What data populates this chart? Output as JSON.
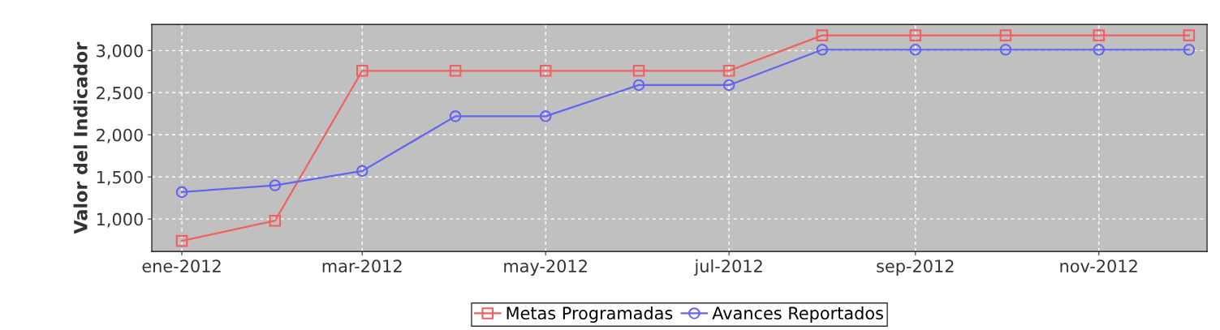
{
  "chart_data": {
    "type": "line",
    "ylabel": "Valor del Indicador",
    "x": [
      "2012-01",
      "2012-02",
      "2012-03",
      "2012-04",
      "2012-05",
      "2012-06",
      "2012-07",
      "2012-08",
      "2012-09",
      "2012-10",
      "2012-11",
      "2012-12"
    ],
    "series": [
      {
        "name": "Metas Programadas",
        "color": "#f06060",
        "marker": "square",
        "values": [
          740,
          980,
          2760,
          2760,
          2760,
          2760,
          2760,
          3180,
          3180,
          3180,
          3180,
          3180
        ]
      },
      {
        "name": "Avances Reportados",
        "color": "#6464f0",
        "marker": "circle",
        "values": [
          1320,
          1400,
          1570,
          2220,
          2220,
          2590,
          2590,
          3010,
          3010,
          3010,
          3010,
          3010
        ]
      }
    ],
    "xlim": [
      "2011-12-22",
      "2012-12-07"
    ],
    "xticks": [
      {
        "value": "2012-01",
        "label": "ene-2012"
      },
      {
        "value": "2012-03",
        "label": "mar-2012"
      },
      {
        "value": "2012-05",
        "label": "may-2012"
      },
      {
        "value": "2012-07",
        "label": "jul-2012"
      },
      {
        "value": "2012-09",
        "label": "sep-2012"
      },
      {
        "value": "2012-11",
        "label": "nov-2012"
      }
    ],
    "ylim": [
      615,
      3310
    ],
    "yticks": [
      {
        "value": 1000,
        "label": "1,000"
      },
      {
        "value": 1500,
        "label": "1,500"
      },
      {
        "value": 2000,
        "label": "2,000"
      },
      {
        "value": 2500,
        "label": "2,500"
      },
      {
        "value": 3000,
        "label": "3,000"
      }
    ],
    "grid": true,
    "legend": "bottom",
    "line_style": "solid"
  }
}
